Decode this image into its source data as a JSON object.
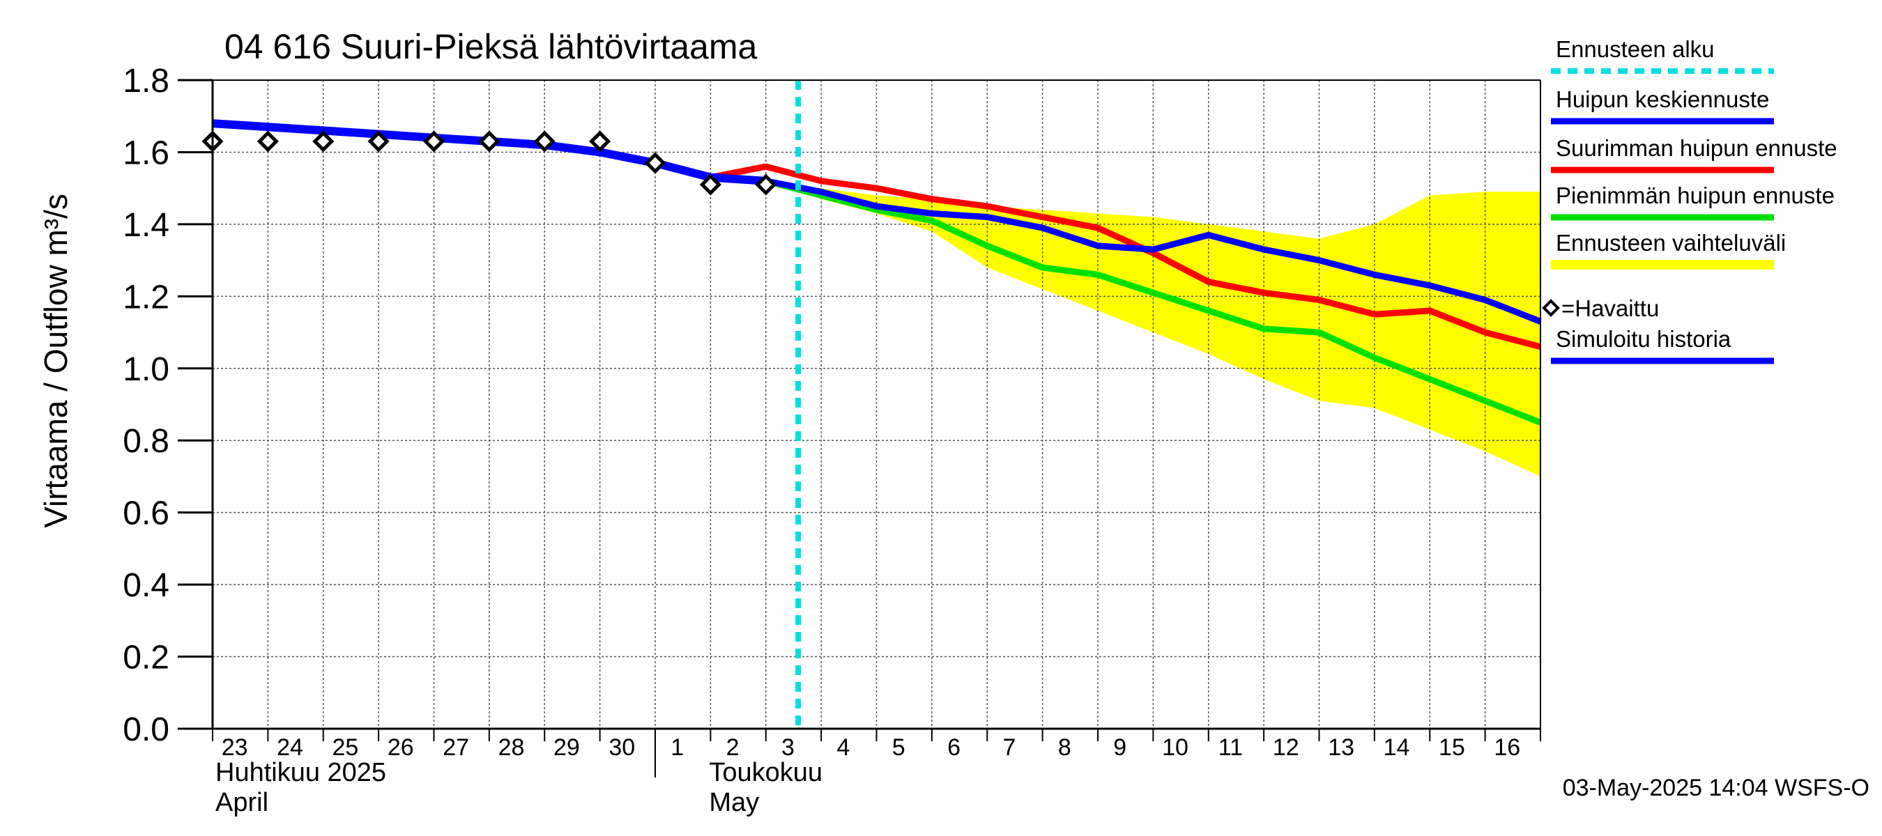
{
  "chart_data": {
    "type": "line",
    "title": "04 616 Suuri-Pieksä lähtövirtaama",
    "ylabel": "Virtaama / Outflow    m³/s",
    "ylim": [
      0.0,
      1.8
    ],
    "yticks": [
      "0.0",
      "0.2",
      "0.4",
      "0.6",
      "0.8",
      "1.0",
      "1.2",
      "1.4",
      "1.6",
      "1.8"
    ],
    "xlim": [
      "2025-04-23T00:00",
      "2025-05-17T00:00"
    ],
    "x_days": [
      "23",
      "24",
      "25",
      "26",
      "27",
      "28",
      "29",
      "30",
      "1",
      "2",
      "3",
      "4",
      "5",
      "6",
      "7",
      "8",
      "9",
      "10",
      "11",
      "12",
      "13",
      "14",
      "15",
      "16"
    ],
    "month_labels": [
      {
        "line1": "Huhtikuu  2025",
        "line2": "April"
      },
      {
        "line1": "Toukokuu",
        "line2": "May"
      }
    ],
    "grid": true,
    "forecast_start": "2025-05-03T14:00",
    "observed": {
      "x": [
        "2025-04-23T00:00",
        "2025-04-24T00:00",
        "2025-04-25T00:00",
        "2025-04-26T00:00",
        "2025-04-27T00:00",
        "2025-04-28T00:00",
        "2025-04-29T00:00",
        "2025-04-30T00:00",
        "2025-05-01T00:00",
        "2025-05-02T00:00",
        "2025-05-03T00:00"
      ],
      "y": [
        1.63,
        1.63,
        1.63,
        1.63,
        1.63,
        1.63,
        1.63,
        1.63,
        1.57,
        1.51,
        1.51
      ]
    },
    "range_band": {
      "x": [
        "2025-05-03T00:00",
        "2025-05-04T00:00",
        "2025-05-05T00:00",
        "2025-05-06T00:00",
        "2025-05-07T00:00",
        "2025-05-08T00:00",
        "2025-05-09T00:00",
        "2025-05-10T00:00",
        "2025-05-11T00:00",
        "2025-05-12T00:00",
        "2025-05-13T00:00",
        "2025-05-14T00:00",
        "2025-05-15T00:00",
        "2025-05-16T00:00",
        "2025-05-17T00:00"
      ],
      "upper": [
        1.52,
        1.5,
        1.48,
        1.47,
        1.45,
        1.44,
        1.43,
        1.42,
        1.4,
        1.38,
        1.36,
        1.4,
        1.48,
        1.49,
        1.49
      ],
      "lower": [
        1.52,
        1.47,
        1.43,
        1.38,
        1.28,
        1.22,
        1.16,
        1.1,
        1.04,
        0.97,
        0.91,
        0.89,
        0.83,
        0.77,
        0.7
      ]
    },
    "series": [
      {
        "name": "Huipun keskiennuste",
        "color": "#0000ff",
        "x": [
          "2025-05-03T00:00",
          "2025-05-04T00:00",
          "2025-05-05T00:00",
          "2025-05-06T00:00",
          "2025-05-07T00:00",
          "2025-05-08T00:00",
          "2025-05-09T00:00",
          "2025-05-10T00:00",
          "2025-05-11T00:00",
          "2025-05-12T00:00",
          "2025-05-13T00:00",
          "2025-05-14T00:00",
          "2025-05-15T00:00",
          "2025-05-16T00:00",
          "2025-05-17T00:00"
        ],
        "y": [
          1.52,
          1.49,
          1.45,
          1.43,
          1.42,
          1.39,
          1.34,
          1.33,
          1.37,
          1.33,
          1.3,
          1.26,
          1.23,
          1.19,
          1.13
        ]
      },
      {
        "name": "Suurimman huipun ennuste",
        "color": "#ff0000",
        "x": [
          "2025-05-02T00:00",
          "2025-05-03T00:00",
          "2025-05-04T00:00",
          "2025-05-05T00:00",
          "2025-05-06T00:00",
          "2025-05-07T00:00",
          "2025-05-08T00:00",
          "2025-05-09T00:00",
          "2025-05-10T00:00",
          "2025-05-11T00:00",
          "2025-05-12T00:00",
          "2025-05-13T00:00",
          "2025-05-14T00:00",
          "2025-05-15T00:00",
          "2025-05-16T00:00",
          "2025-05-17T00:00"
        ],
        "y": [
          1.53,
          1.56,
          1.52,
          1.5,
          1.47,
          1.45,
          1.42,
          1.39,
          1.32,
          1.24,
          1.21,
          1.19,
          1.15,
          1.16,
          1.1,
          1.06
        ]
      },
      {
        "name": "Pienimmän huipun ennuste",
        "color": "#00e000",
        "x": [
          "2025-05-03T00:00",
          "2025-05-04T00:00",
          "2025-05-05T00:00",
          "2025-05-06T00:00",
          "2025-05-07T00:00",
          "2025-05-08T00:00",
          "2025-05-09T00:00",
          "2025-05-10T00:00",
          "2025-05-11T00:00",
          "2025-05-12T00:00",
          "2025-05-13T00:00",
          "2025-05-14T00:00",
          "2025-05-15T00:00",
          "2025-05-16T00:00",
          "2025-05-17T00:00"
        ],
        "y": [
          1.52,
          1.48,
          1.44,
          1.41,
          1.34,
          1.28,
          1.26,
          1.21,
          1.16,
          1.11,
          1.1,
          1.03,
          0.97,
          0.91,
          0.85
        ]
      },
      {
        "name": "Simuloitu historia",
        "color": "#0000ff",
        "x": [
          "2025-04-23T00:00",
          "2025-04-24T00:00",
          "2025-04-25T00:00",
          "2025-04-26T00:00",
          "2025-04-27T00:00",
          "2025-04-28T00:00",
          "2025-04-29T00:00",
          "2025-04-30T00:00",
          "2025-05-01T00:00",
          "2025-05-02T00:00",
          "2025-05-03T00:00"
        ],
        "y": [
          1.68,
          1.67,
          1.66,
          1.65,
          1.64,
          1.63,
          1.62,
          1.6,
          1.57,
          1.53,
          1.52
        ]
      }
    ],
    "legend": {
      "placement": "right",
      "items": [
        {
          "label": "Ennusteen alku",
          "color": "#00e0e0",
          "style": "dashed"
        },
        {
          "label": "Huipun keskiennuste",
          "color": "#0000ff",
          "style": "line"
        },
        {
          "label": "Suurimman huipun ennuste",
          "color": "#ff0000",
          "style": "line"
        },
        {
          "label": "Pienimmän huipun ennuste",
          "color": "#00e000",
          "style": "line"
        },
        {
          "label": "Ennusteen vaihteluväli",
          "color": "#ffff00",
          "style": "band"
        },
        {
          "label": "=Havaittu",
          "color": "#000000",
          "style": "marker"
        },
        {
          "label": "Simuloitu historia",
          "color": "#0000ff",
          "style": "line"
        }
      ]
    },
    "footer": "03-May-2025 14:04 WSFS-O"
  }
}
